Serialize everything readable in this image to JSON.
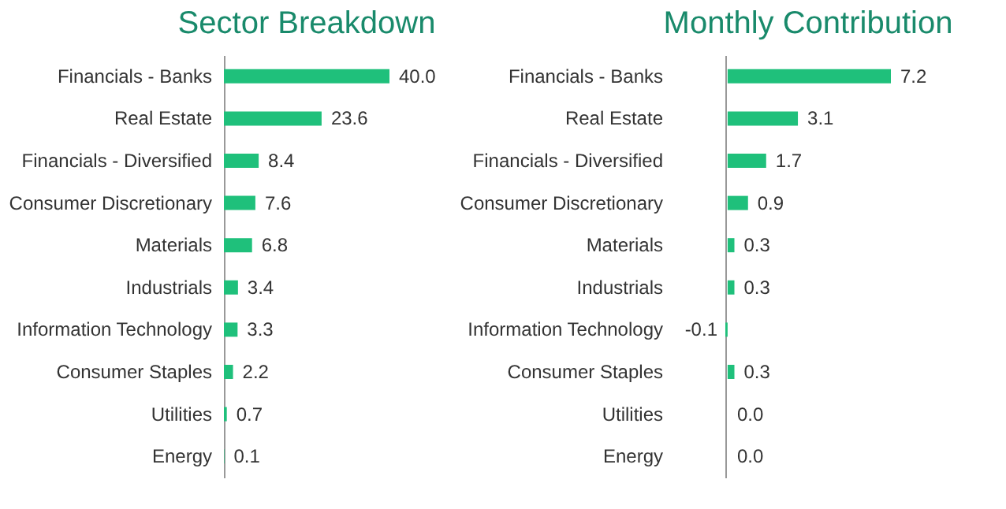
{
  "chart_data": [
    {
      "type": "bar",
      "orientation": "horizontal",
      "title": "Sector Breakdown",
      "tick_labels": "y",
      "categories": [
        "Financials - Banks",
        "Real Estate",
        "Financials - Diversified",
        "Consumer Discretionary",
        "Materials",
        "Industrials",
        "Information Technology",
        "Consumer Staples",
        "Utilities",
        "Energy"
      ],
      "values": [
        40.0,
        23.6,
        8.4,
        7.6,
        6.8,
        3.4,
        3.3,
        2.2,
        0.7,
        0.1
      ],
      "value_labels": [
        "40.0",
        "23.6",
        "8.4",
        "7.6",
        "6.8",
        "3.4",
        "3.3",
        "2.2",
        "0.7",
        "0.1"
      ],
      "color": "#1fc07b"
    },
    {
      "type": "bar",
      "orientation": "horizontal",
      "title": "Monthly Contribution",
      "tick_labels": "y",
      "categories": [
        "Financials - Banks",
        "Real Estate",
        "Financials - Diversified",
        "Consumer Discretionary",
        "Materials",
        "Industrials",
        "Information Technology",
        "Consumer Staples",
        "Utilities",
        "Energy"
      ],
      "values": [
        7.2,
        3.1,
        1.7,
        0.9,
        0.3,
        0.3,
        -0.1,
        0.3,
        0.0,
        0.0
      ],
      "value_labels": [
        "7.2",
        "3.1",
        "1.7",
        "0.9",
        "0.3",
        "0.3",
        "-0.1",
        "0.3",
        "0.0",
        "0.0"
      ],
      "color": "#1fc07b"
    }
  ]
}
